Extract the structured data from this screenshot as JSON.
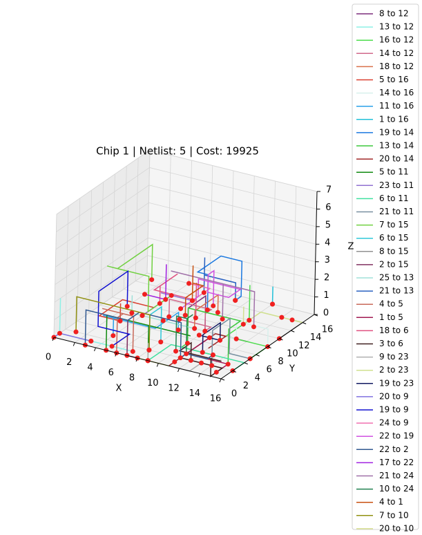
{
  "chart_data": {
    "type": "wire3d",
    "title": "Chip 1  | Netlist: 5  | Cost: 19925",
    "x_label": "X",
    "y_label": "Y",
    "z_label": "Z",
    "xlim": [
      0,
      16
    ],
    "ylim": [
      0,
      16
    ],
    "zlim": [
      0,
      7
    ],
    "xticks": [
      0,
      2,
      4,
      6,
      8,
      10,
      12,
      14,
      16
    ],
    "yticks": [
      0,
      2,
      4,
      6,
      8,
      10,
      12,
      14,
      16
    ],
    "zticks": [
      0,
      1,
      2,
      3,
      4,
      5,
      6,
      7
    ],
    "grid": true,
    "legend": "right",
    "series": [
      {
        "name": "8 to 12",
        "color": "#7b2d7b"
      },
      {
        "name": "13 to 12",
        "color": "#8ef0e6"
      },
      {
        "name": "16 to 12",
        "color": "#4ddc4d"
      },
      {
        "name": "14 to 12",
        "color": "#d0688a"
      },
      {
        "name": "18 to 12",
        "color": "#d9704a"
      },
      {
        "name": "5 to 16",
        "color": "#d94030"
      },
      {
        "name": "14 to 16",
        "color": "#d8f0ec"
      },
      {
        "name": "11 to 16",
        "color": "#2aa0e8"
      },
      {
        "name": "1 to 16",
        "color": "#20c0d8"
      },
      {
        "name": "19 to 14",
        "color": "#1a78e0"
      },
      {
        "name": "13 to 14",
        "color": "#3cc83c"
      },
      {
        "name": "20 to 14",
        "color": "#a02828"
      },
      {
        "name": "5 to 11",
        "color": "#108a10"
      },
      {
        "name": "23 to 11",
        "color": "#9070d0"
      },
      {
        "name": "6 to 11",
        "color": "#40e0a0"
      },
      {
        "name": "21 to 11",
        "color": "#7890a0"
      },
      {
        "name": "7 to 15",
        "color": "#70d040"
      },
      {
        "name": "6 to 15",
        "color": "#30c8d8"
      },
      {
        "name": "8 to 15",
        "color": "#909090"
      },
      {
        "name": "2 to 15",
        "color": "#803060"
      },
      {
        "name": "25 to 13",
        "color": "#a0e0d8"
      },
      {
        "name": "21 to 13",
        "color": "#2860c0"
      },
      {
        "name": "4 to 5",
        "color": "#c86858"
      },
      {
        "name": "1 to 5",
        "color": "#a01850"
      },
      {
        "name": "18 to 6",
        "color": "#e05080"
      },
      {
        "name": "3 to 6",
        "color": "#402020"
      },
      {
        "name": "9 to 23",
        "color": "#b0b0b0"
      },
      {
        "name": "2 to 23",
        "color": "#d0e090"
      },
      {
        "name": "19 to 23",
        "color": "#101860"
      },
      {
        "name": "20 to 9",
        "color": "#8070e0"
      },
      {
        "name": "19 to 9",
        "color": "#1010d0"
      },
      {
        "name": "24 to 9",
        "color": "#f070b0"
      },
      {
        "name": "22 to 19",
        "color": "#d050e0"
      },
      {
        "name": "22 to 2",
        "color": "#305890"
      },
      {
        "name": "17 to 22",
        "color": "#a020e0"
      },
      {
        "name": "21 to 24",
        "color": "#a070a8"
      },
      {
        "name": "10 to 24",
        "color": "#208050"
      },
      {
        "name": "4 to 1",
        "color": "#c85010"
      },
      {
        "name": "7 to 10",
        "color": "#909010"
      },
      {
        "name": "20 to 10",
        "color": "#d8e090"
      }
    ]
  }
}
